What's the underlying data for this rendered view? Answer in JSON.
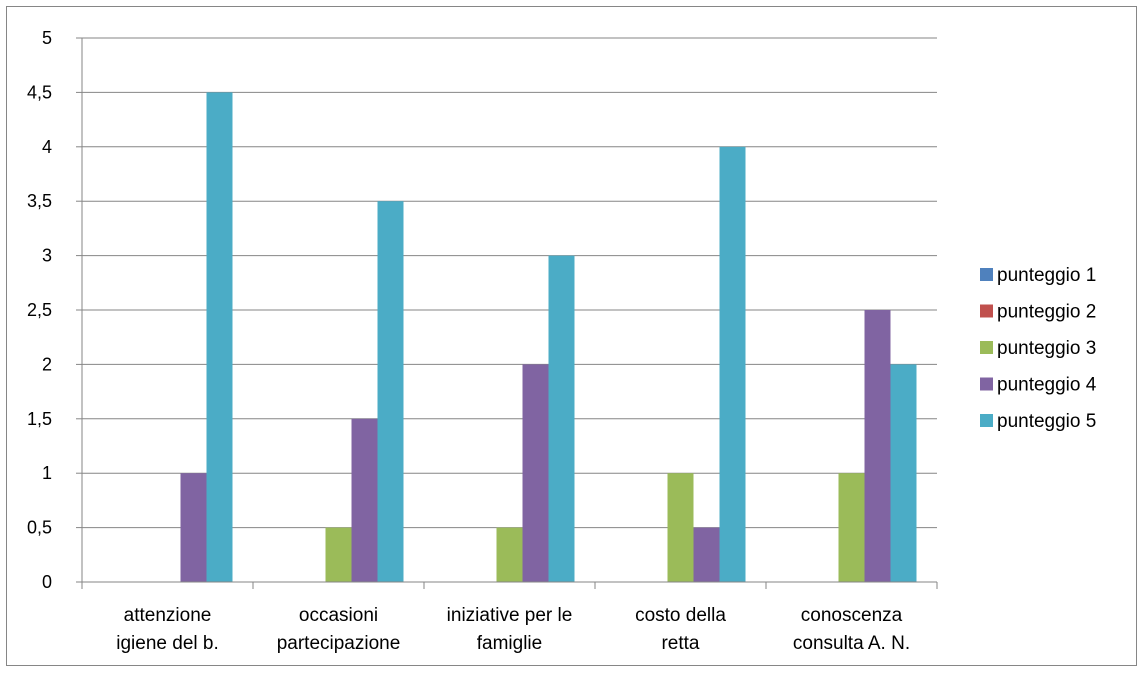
{
  "chart_data": {
    "type": "bar",
    "title": "",
    "xlabel": "",
    "ylabel": "",
    "ylim": [
      0,
      5
    ],
    "ytick_step": 0.5,
    "ytick_labels": [
      "0",
      "0,5",
      "1",
      "1,5",
      "2",
      "2,5",
      "3",
      "3,5",
      "4",
      "4,5",
      "5"
    ],
    "grid": true,
    "legend_position": "right",
    "categories": [
      [
        "attenzione",
        "igiene del b."
      ],
      [
        "occasioni",
        "partecipazione"
      ],
      [
        "iniziative per le",
        "famiglie"
      ],
      [
        "costo della",
        "retta"
      ],
      [
        "conoscenza",
        "consulta A. N."
      ]
    ],
    "series": [
      {
        "name": "punteggio 1",
        "color": "#4F81BD",
        "values": [
          0,
          0,
          0,
          0,
          0
        ]
      },
      {
        "name": "punteggio 2",
        "color": "#C0504D",
        "values": [
          0,
          0,
          0,
          0,
          0
        ]
      },
      {
        "name": "punteggio 3",
        "color": "#9BBB59",
        "values": [
          0,
          0.5,
          0.5,
          1,
          1
        ]
      },
      {
        "name": "punteggio 4",
        "color": "#8064A2",
        "values": [
          1,
          1.5,
          2,
          0.5,
          2.5
        ]
      },
      {
        "name": "punteggio 5",
        "color": "#4BACC6",
        "values": [
          4.5,
          3.5,
          3,
          4,
          2
        ]
      }
    ]
  }
}
